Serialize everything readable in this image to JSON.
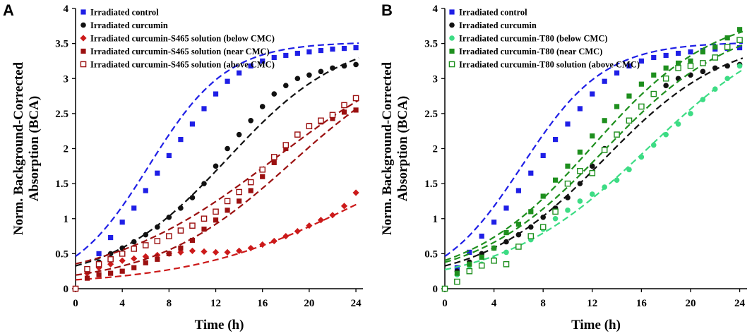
{
  "chart_data": [
    {
      "type": "scatter",
      "panel_label": "A",
      "xlabel": "Time (h)",
      "ylabel_line1": "Norm. Background-Corrected",
      "ylabel_line2": "Absorption (BCA)",
      "xlim": [
        0,
        24.6
      ],
      "ylim": [
        0,
        4
      ],
      "xticks": [
        0,
        4,
        8,
        12,
        16,
        20,
        24
      ],
      "yticks": [
        0,
        0.5,
        1,
        1.5,
        2,
        2.5,
        3,
        3.5,
        4
      ],
      "ytick_labels": [
        "0",
        "0.5",
        "1",
        "1.5",
        "2",
        "2.5",
        "3",
        "3.5",
        "4"
      ],
      "legend_position": "top-left",
      "series": [
        {
          "name": "Irradiated control",
          "marker": "square",
          "color": "#1f1fe6",
          "x": [
            0,
            1,
            2,
            3,
            4,
            5,
            6,
            7,
            8,
            9,
            10,
            11,
            12,
            13,
            14,
            15,
            16,
            17,
            18,
            19,
            20,
            21,
            22,
            23,
            24
          ],
          "y": [
            0,
            0.28,
            0.5,
            0.73,
            0.95,
            1.15,
            1.4,
            1.65,
            1.9,
            2.13,
            2.35,
            2.57,
            2.78,
            2.96,
            3.08,
            3.18,
            3.25,
            3.3,
            3.33,
            3.36,
            3.38,
            3.4,
            3.42,
            3.43,
            3.44
          ],
          "fit": {
            "a": 3.52,
            "k": 0.3,
            "x0": 6.3,
            "b": 0
          }
        },
        {
          "name": "Irradiated curcumin",
          "marker": "circle",
          "color": "#111111",
          "x": [
            0,
            1,
            2,
            3,
            4,
            5,
            6,
            7,
            8,
            9,
            10,
            11,
            12,
            13,
            14,
            15,
            16,
            17,
            18,
            19,
            20,
            21,
            22,
            23,
            24
          ],
          "y": [
            0,
            0.25,
            0.38,
            0.5,
            0.58,
            0.67,
            0.77,
            0.88,
            1.02,
            1.15,
            1.3,
            1.5,
            1.75,
            2.0,
            2.2,
            2.4,
            2.6,
            2.78,
            2.9,
            3.0,
            3.05,
            3.1,
            3.15,
            3.18,
            3.2
          ],
          "fit": {
            "a": 3.55,
            "k": 0.2,
            "x0": 13.0,
            "b": 0.08
          }
        },
        {
          "name": "Irradiated curcumin-S465 solution (below CMC)",
          "marker": "diamond",
          "color": "#cc1a1a",
          "x": [
            0,
            1,
            2,
            3,
            4,
            5,
            6,
            7,
            8,
            9,
            10,
            11,
            12,
            13,
            14,
            15,
            16,
            17,
            18,
            19,
            20,
            21,
            22,
            23,
            24
          ],
          "y": [
            0,
            0.22,
            0.3,
            0.35,
            0.4,
            0.43,
            0.46,
            0.48,
            0.5,
            0.52,
            0.54,
            0.53,
            0.52,
            0.52,
            0.54,
            0.58,
            0.63,
            0.68,
            0.75,
            0.82,
            0.9,
            0.98,
            1.05,
            1.18,
            1.37
          ],
          "fit": {
            "a": 2.3,
            "k": 0.14,
            "x0": 24.0,
            "b": 0.05
          }
        },
        {
          "name": "Irradiated curcumin-S465 solution (near CMC)",
          "marker": "square",
          "color": "#9b1010",
          "x": [
            0,
            1,
            2,
            3,
            4,
            5,
            6,
            7,
            8,
            9,
            10,
            11,
            12,
            13,
            14,
            15,
            16,
            17,
            18,
            19,
            20,
            21,
            22,
            23,
            24
          ],
          "y": [
            0,
            0.15,
            0.2,
            0.22,
            0.25,
            0.3,
            0.37,
            0.42,
            0.5,
            0.58,
            0.69,
            0.85,
            0.98,
            1.12,
            1.25,
            1.4,
            1.6,
            1.8,
            2.0,
            2.2,
            2.33,
            2.38,
            2.43,
            2.52,
            2.55
          ],
          "fit": {
            "a": 3.5,
            "k": 0.17,
            "x0": 18.5,
            "b": 0.05
          }
        },
        {
          "name": "Irradiated curcumin-S465 solution (above CMC)",
          "marker": "open-square",
          "color": "#9b1010",
          "x": [
            0,
            1,
            2,
            3,
            4,
            5,
            6,
            7,
            8,
            9,
            10,
            11,
            12,
            13,
            14,
            15,
            16,
            17,
            18,
            19,
            20,
            21,
            22,
            23,
            24
          ],
          "y": [
            0,
            0.28,
            0.35,
            0.42,
            0.5,
            0.57,
            0.62,
            0.68,
            0.75,
            0.83,
            0.9,
            1.0,
            1.1,
            1.25,
            1.38,
            1.52,
            1.7,
            1.88,
            2.05,
            2.2,
            2.32,
            2.4,
            2.48,
            2.62,
            2.72
          ],
          "fit": {
            "a": 3.6,
            "k": 0.14,
            "x0": 17.0,
            "b": 0.05
          }
        }
      ],
      "legend": [
        "Irradiated control",
        "Irradiated curcumin",
        "Irradiated curcumin-S465 solution (below CMC)",
        "Irradiated curcumin-S465 solution (near CMC)",
        "Irradiated curcumin-S465 solution (above CMC)"
      ]
    },
    {
      "type": "scatter",
      "panel_label": "B",
      "xlabel": "Time (h)",
      "ylabel_line1": "Norm. Background-Corrected",
      "ylabel_line2": "Absorption (BCA)",
      "xlim": [
        0,
        24.6
      ],
      "ylim": [
        0,
        4
      ],
      "xticks": [
        0,
        4,
        8,
        12,
        16,
        20,
        24
      ],
      "yticks": [
        0,
        0.5,
        1,
        1.5,
        2,
        2.5,
        3,
        3.5,
        4
      ],
      "ytick_labels": [
        "0",
        "0.5",
        "1",
        "1.5",
        "2",
        "2.5",
        "3",
        "3.5",
        "4"
      ],
      "legend_position": "top-left",
      "series": [
        {
          "name": "Irradiated control",
          "marker": "square",
          "color": "#1f1fe6",
          "x": [
            0,
            1,
            2,
            3,
            4,
            5,
            6,
            7,
            8,
            9,
            10,
            11,
            12,
            13,
            14,
            15,
            16,
            17,
            18,
            19,
            20,
            21,
            22,
            23,
            24
          ],
          "y": [
            0,
            0.3,
            0.52,
            0.75,
            0.95,
            1.15,
            1.4,
            1.65,
            1.9,
            2.13,
            2.35,
            2.57,
            2.78,
            2.96,
            3.08,
            3.18,
            3.25,
            3.3,
            3.33,
            3.36,
            3.38,
            3.4,
            3.42,
            3.43,
            3.44
          ],
          "fit": {
            "a": 3.52,
            "k": 0.3,
            "x0": 6.3,
            "b": 0
          }
        },
        {
          "name": "Irradiated curcumin",
          "marker": "circle",
          "color": "#111111",
          "x": [
            0,
            1,
            2,
            3,
            4,
            5,
            6,
            7,
            8,
            9,
            10,
            11,
            12,
            13,
            14,
            15,
            16,
            17,
            18,
            19,
            20,
            21,
            22,
            23,
            24
          ],
          "y": [
            0,
            0.25,
            0.38,
            0.5,
            0.58,
            0.67,
            0.77,
            0.88,
            1.02,
            1.15,
            1.3,
            1.5,
            1.75,
            2.0,
            2.2,
            2.4,
            2.6,
            2.78,
            2.9,
            3.0,
            3.05,
            3.1,
            3.15,
            3.18,
            3.2
          ],
          "fit": {
            "a": 3.55,
            "k": 0.2,
            "x0": 13.0,
            "b": 0.08
          }
        },
        {
          "name": "Irradiated curcumin-T80 (below CMC)",
          "marker": "circle",
          "color": "#3ddc84",
          "x": [
            0,
            1,
            2,
            3,
            4,
            5,
            6,
            7,
            8,
            9,
            10,
            11,
            12,
            13,
            14,
            15,
            16,
            17,
            18,
            19,
            20,
            21,
            22,
            23,
            24
          ],
          "y": [
            0,
            0.2,
            0.28,
            0.35,
            0.42,
            0.52,
            0.6,
            0.7,
            0.85,
            1.0,
            1.12,
            1.25,
            1.35,
            1.45,
            1.55,
            1.7,
            1.88,
            2.05,
            2.2,
            2.35,
            2.5,
            2.7,
            2.85,
            3.0,
            3.18
          ],
          "fit": {
            "a": 3.9,
            "k": 0.17,
            "x0": 16.5,
            "b": 0.05
          }
        },
        {
          "name": "Irradiated curcumin-T80 (near CMC)",
          "marker": "square",
          "color": "#1e8f1e",
          "x": [
            0,
            1,
            2,
            3,
            4,
            5,
            6,
            7,
            8,
            9,
            10,
            11,
            12,
            13,
            14,
            15,
            16,
            17,
            18,
            19,
            20,
            21,
            22,
            23,
            24
          ],
          "y": [
            0,
            0.22,
            0.35,
            0.45,
            0.58,
            0.8,
            0.92,
            1.1,
            1.32,
            1.55,
            1.75,
            1.95,
            2.18,
            2.4,
            2.6,
            2.75,
            2.92,
            3.05,
            3.15,
            3.22,
            3.25,
            3.38,
            3.45,
            3.58,
            3.7
          ],
          "fit": {
            "a": 3.9,
            "k": 0.2,
            "x0": 12.0,
            "b": 0.08
          }
        },
        {
          "name": "Irradiated curcumin-T80 solution (above CMC)",
          "marker": "open-square",
          "color": "#1e8f1e",
          "x": [
            0,
            1,
            2,
            3,
            4,
            5,
            6,
            7,
            8,
            9,
            10,
            11,
            12,
            13,
            14,
            15,
            16,
            17,
            18,
            19,
            20,
            21,
            22,
            23,
            24
          ],
          "y": [
            0,
            0.1,
            0.25,
            0.33,
            0.4,
            0.35,
            0.6,
            0.75,
            0.88,
            1.1,
            1.5,
            1.68,
            1.65,
            1.98,
            2.2,
            2.4,
            2.6,
            2.78,
            3.0,
            3.15,
            3.18,
            3.22,
            3.3,
            3.45,
            3.55
          ],
          "fit": {
            "a": 3.8,
            "k": 0.19,
            "x0": 13.0,
            "b": 0.08
          }
        }
      ],
      "legend": [
        "Irradiated control",
        "Irradiated curcumin",
        "Irradiated curcumin-T80 (below CMC)",
        "Irradiated curcumin-T80 (near CMC)",
        "Irradiated curcumin-T80 solution (above CMC)"
      ]
    }
  ]
}
